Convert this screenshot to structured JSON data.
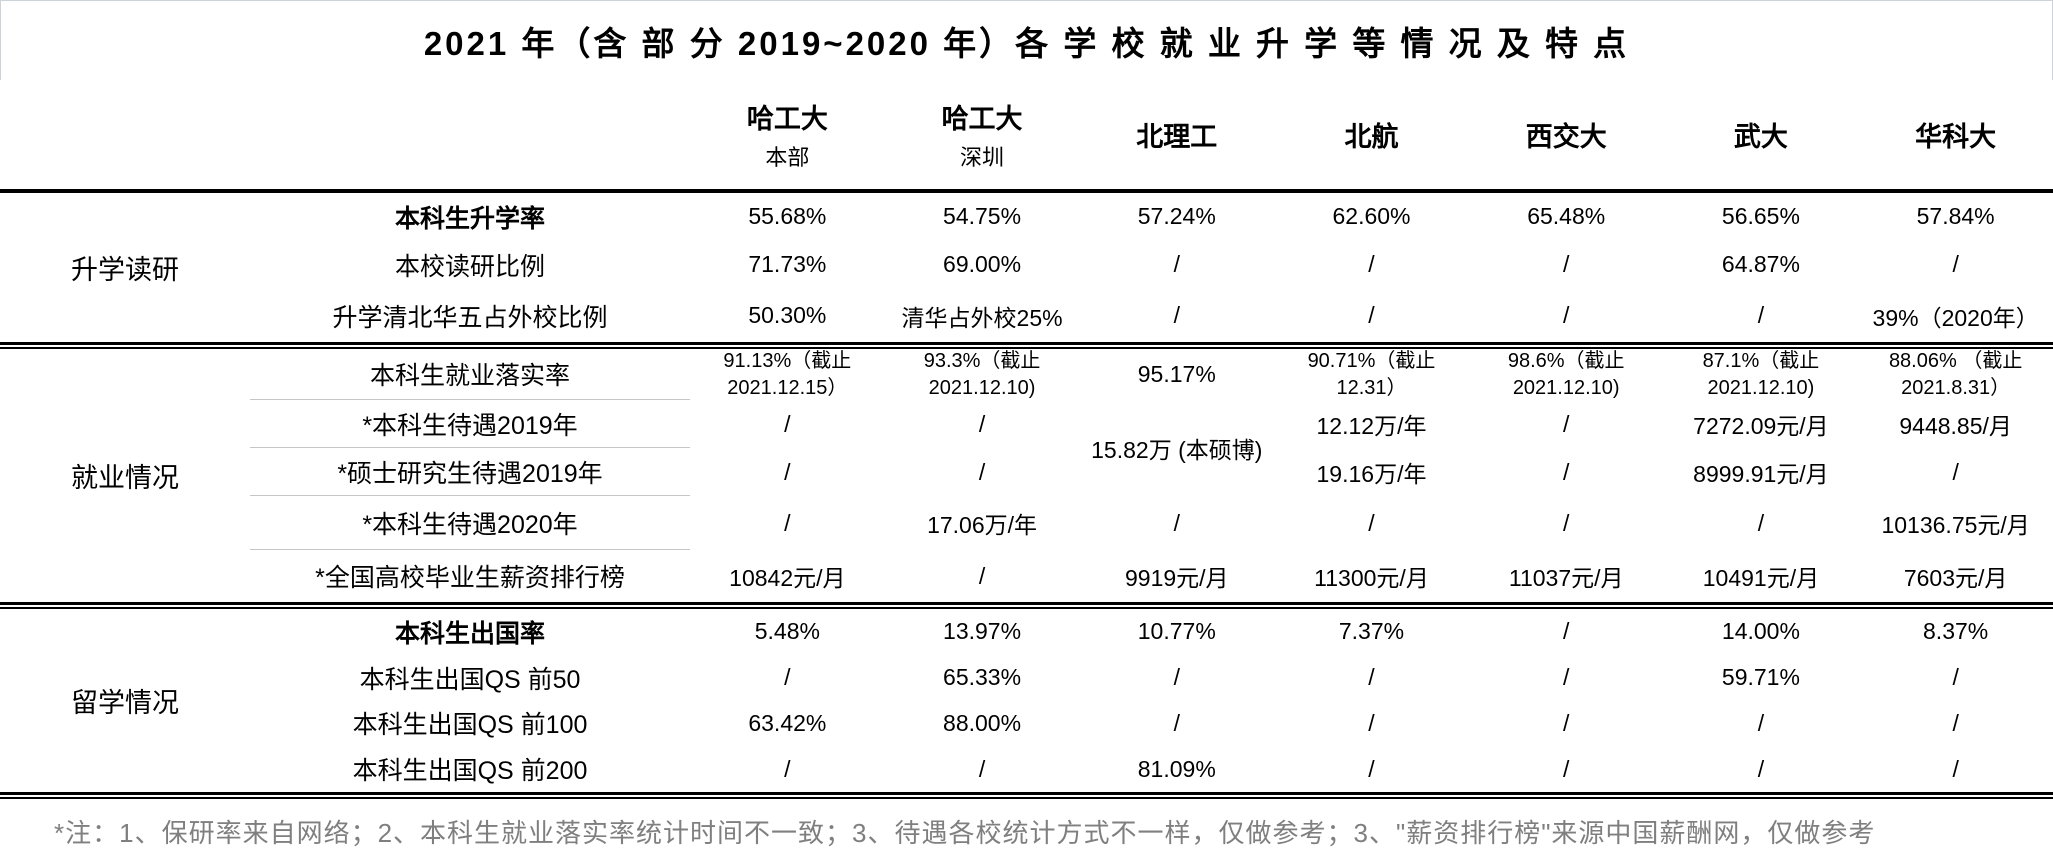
{
  "title": "2021 年（含 部 分 2019~2020 年）各 学 校 就 业 升 学 等 情 况 及 特 点",
  "columns": [
    {
      "name": "哈工大",
      "sub": "本部"
    },
    {
      "name": "哈工大",
      "sub": "深圳"
    },
    {
      "name": "北理工",
      "sub": ""
    },
    {
      "name": "北航",
      "sub": ""
    },
    {
      "name": "西交大",
      "sub": ""
    },
    {
      "name": "武大",
      "sub": ""
    },
    {
      "name": "华科大",
      "sub": ""
    }
  ],
  "sections": [
    {
      "group": "升学读研",
      "label_dividers": false,
      "rows": [
        {
          "label": "本科生升学率",
          "bold": true,
          "cells": [
            "55.68%",
            "54.75%",
            "57.24%",
            "62.60%",
            "65.48%",
            "56.65%",
            "57.84%"
          ]
        },
        {
          "label": "本校读研比例",
          "bold": false,
          "cells": [
            "71.73%",
            "69.00%",
            "/",
            "/",
            "/",
            "64.87%",
            "/"
          ]
        },
        {
          "label": "升学清北华五占外校比例",
          "bold": false,
          "cells": [
            "50.30%",
            "清华占外校25%",
            "/",
            "/",
            "/",
            "/",
            "39%（2020年）"
          ]
        }
      ]
    },
    {
      "group": "就业情况",
      "label_dividers": true,
      "rows": [
        {
          "label": "本科生就业落实率",
          "bold": false,
          "cells": [
            "91.13%（截止\n2021.12.15）",
            "93.3%（截止\n2021.12.10)",
            "95.17%",
            "90.71%（截止\n12.31）",
            "98.6%（截止\n2021.12.10)",
            "87.1%（截止\n2021.12.10)",
            "88.06% （截止\n2021.8.31）"
          ]
        },
        {
          "label": "*本科生待遇2019年",
          "bold": false,
          "cells": [
            "/",
            "/",
            {
              "text": "15.82万 (本硕博)",
              "rowspan": 2
            },
            "12.12万/年",
            "/",
            "7272.09元/月",
            "9448.85/月"
          ]
        },
        {
          "label": "*硕士研究生待遇2019年",
          "bold": false,
          "cells": [
            "/",
            "/",
            null,
            "19.16万/年",
            "/",
            "8999.91元/月",
            "/"
          ]
        },
        {
          "label": "*本科生待遇2020年",
          "bold": false,
          "cells": [
            "/",
            "17.06万/年",
            "/",
            "/",
            "/",
            "/",
            "10136.75元/月"
          ]
        },
        {
          "label": "*全国高校毕业生薪资排行榜",
          "bold": false,
          "cells": [
            "10842元/月",
            "/",
            "9919元/月",
            "11300元/月",
            "11037元/月",
            "10491元/月",
            "7603元/月"
          ]
        }
      ]
    },
    {
      "group": "留学情况",
      "label_dividers": false,
      "rows": [
        {
          "label": "本科生出国率",
          "bold": true,
          "cells": [
            "5.48%",
            "13.97%",
            "10.77%",
            "7.37%",
            "/",
            "14.00%",
            "8.37%"
          ]
        },
        {
          "label": "本科生出国QS 前50",
          "bold": false,
          "cells": [
            "/",
            "65.33%",
            "/",
            "/",
            "/",
            "59.71%",
            "/"
          ]
        },
        {
          "label": "本科生出国QS 前100",
          "bold": false,
          "cells": [
            "63.42%",
            "88.00%",
            "/",
            "/",
            "/",
            "/",
            "/"
          ]
        },
        {
          "label": "本科生出国QS 前200",
          "bold": false,
          "cells": [
            "/",
            "/",
            "81.09%",
            "/",
            "/",
            "/",
            "/"
          ]
        }
      ]
    }
  ],
  "note": "*注：1、保研率来自网络；2、本科生就业落实率统计时间不一致；3、待遇各校统计方式不一样，仅做参考；3、\"薪资排行榜\"来源中国薪酬网，仅做参考",
  "colors": {
    "text": "#000000",
    "note_text": "#7f7f7f",
    "label_divider": "#c6c6c6",
    "section_divider": "#000000",
    "title_border": "#ccd3da"
  }
}
